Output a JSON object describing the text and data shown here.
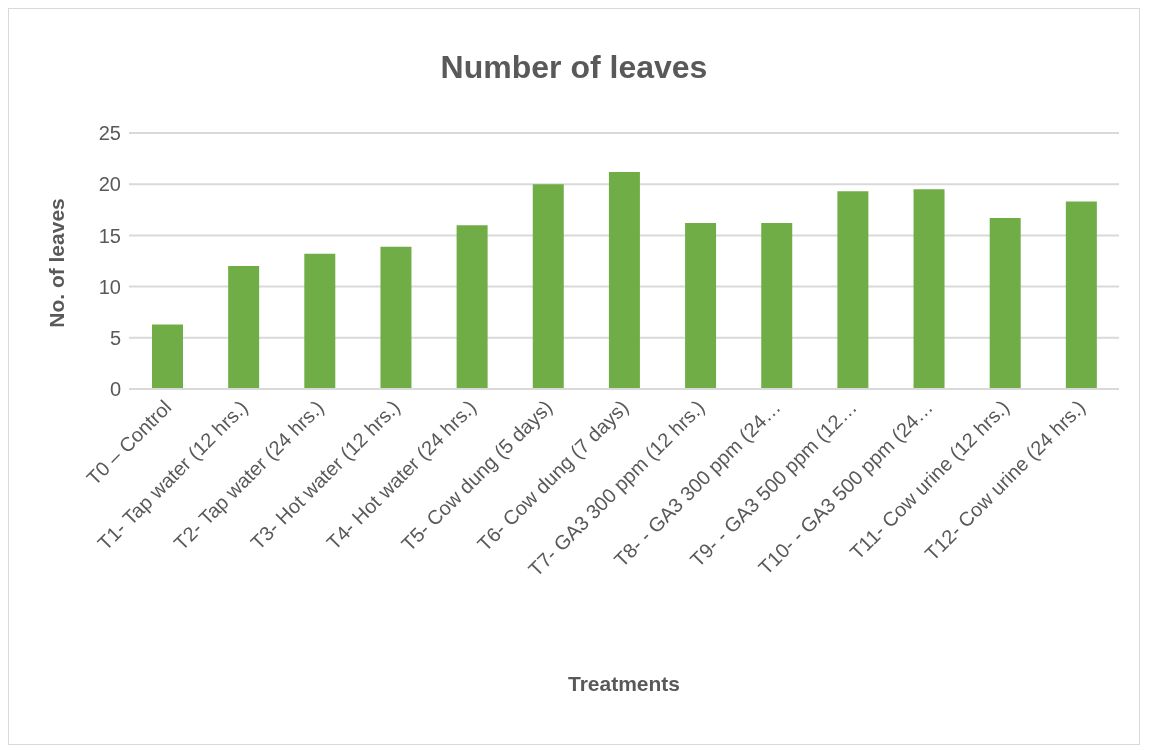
{
  "chart_data": {
    "type": "bar",
    "title": "Number of leaves",
    "xlabel": "Treatments",
    "ylabel": "No. of leaves",
    "categories": [
      "T0 – Control",
      "T1- Tap water (12 hrs.)",
      "T2- Tap water (24 hrs.)",
      "T3- Hot water (12 hrs.)",
      "T4- Hot water (24 hrs.)",
      "T5- Cow dung (5 days)",
      "T6- Cow dung (7 days)",
      "T7- GA3 300 ppm (12 hrs.)",
      "T8- - GA3 300 ppm (24…",
      "T9- - GA3 500 ppm (12…",
      "T10- - GA3 500 ppm (24…",
      "T11- Cow urine (12 hrs.)",
      "T12- Cow urine (24 hrs.)"
    ],
    "values": [
      6.3,
      12,
      13.2,
      13.9,
      16,
      20,
      21.2,
      16.2,
      16.2,
      19.3,
      19.5,
      16.7,
      18.3
    ],
    "color": "#70ad47",
    "ylim": [
      0,
      25
    ],
    "yticks": [
      0,
      5,
      10,
      15,
      20,
      25
    ],
    "grid": "y"
  }
}
